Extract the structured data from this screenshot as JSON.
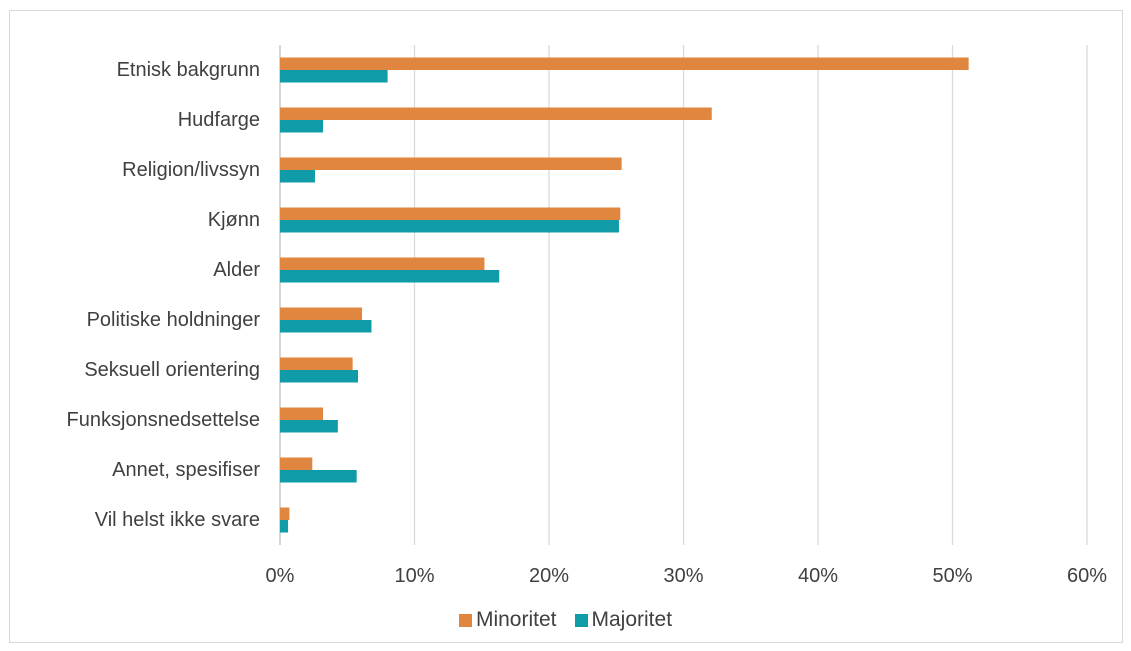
{
  "chart_data": {
    "type": "bar",
    "orientation": "horizontal",
    "categories": [
      "Etnisk bakgrunn",
      "Hudfarge",
      "Religion/livssyn",
      "Kjønn",
      "Alder",
      "Politiske holdninger",
      "Seksuell orientering",
      "Funksjonsnedsettelse",
      "Annet, spesifiser",
      "Vil helst ikke svare"
    ],
    "series": [
      {
        "name": "Minoritet",
        "color": "#e0863e",
        "values": [
          51.2,
          32.1,
          25.4,
          25.3,
          15.2,
          6.1,
          5.4,
          3.2,
          2.4,
          0.7
        ]
      },
      {
        "name": "Majoritet",
        "color": "#0f9ba8",
        "values": [
          8.0,
          3.2,
          2.6,
          25.2,
          16.3,
          6.8,
          5.8,
          4.3,
          5.7,
          0.6
        ]
      }
    ],
    "xlim": [
      0,
      60
    ],
    "xticks": [
      "0%",
      "10%",
      "20%",
      "30%",
      "40%",
      "50%",
      "60%"
    ],
    "grid": true,
    "legend_position": "bottom"
  }
}
